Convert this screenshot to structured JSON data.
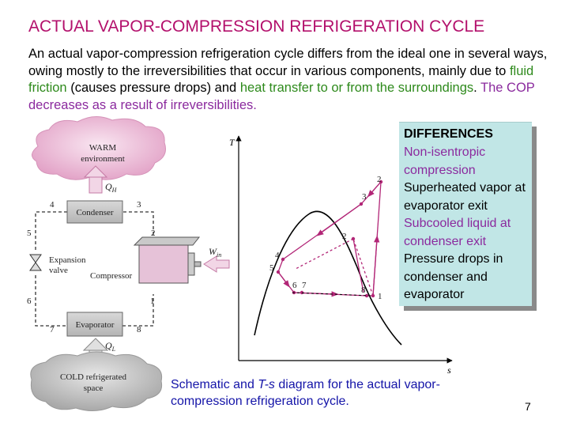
{
  "slide": {
    "title": "ACTUAL VAPOR-COMPRESSION REFRIGERATION CYCLE",
    "intro_part1": "An actual vapor-compression refrigeration cycle differs from the ideal one in several ways, owing mostly to the irreversibilities that occur in various components, mainly due to ",
    "intro_fluid_friction": "fluid friction",
    "intro_part2": " (causes pressure drops) and ",
    "intro_heat_transfer": "heat transfer to or from the surroundings",
    "intro_part3": ". ",
    "intro_cop": "The COP decreases as a result of irreversibilities.",
    "page_number": "7"
  },
  "differences": {
    "heading": "DIFFERENCES",
    "item1": "Non-isentropic compression",
    "item2": "Superheated vapor at evaporator exit",
    "item3": "Subcooled liquid at condenser exit",
    "item4": "Pressure drops in condenser and evaporator"
  },
  "caption": {
    "line1": "Schematic and ",
    "ts_italic": "T-s",
    "line2": " diagram for the actual vapor-compression refrigeration cycle."
  },
  "schematic": {
    "warm_cloud_line1": "WARM",
    "warm_cloud_line2": "environment",
    "qh": "Q",
    "qh_sub": "H",
    "condenser": "Condenser",
    "expansion_line1": "Expansion",
    "expansion_line2": "valve",
    "compressor": "Compressor",
    "win": "W",
    "win_sub": "in",
    "evaporator": "Evaporator",
    "ql": "Q",
    "ql_sub": "L",
    "cold_cloud_line1": "COLD refrigerated",
    "cold_cloud_line2": "space",
    "node_labels": [
      "4",
      "3",
      "5",
      "2",
      "6",
      "1",
      "7",
      "8"
    ]
  },
  "ts_diagram": {
    "t_axis": "T",
    "s_axis": "s",
    "state_labels": [
      "2",
      "3",
      "2",
      "4",
      "5",
      "6",
      "7",
      "8",
      "1"
    ]
  },
  "colors": {
    "title": "#b3106c",
    "green_text": "#2e8a1c",
    "purple_text": "#8b2a9e",
    "caption": "#1414a8",
    "box_bg": "#c1e6e6",
    "warm_cloud": "#eab5d2",
    "cold_cloud": "#b9b9b9",
    "cycle_line": "#b22677"
  }
}
